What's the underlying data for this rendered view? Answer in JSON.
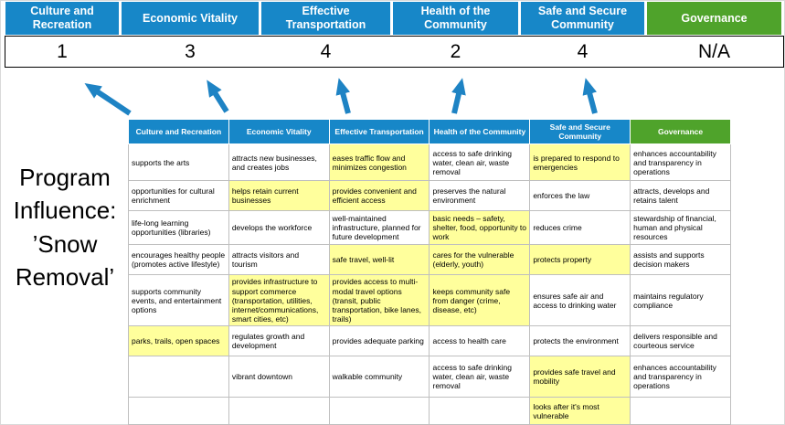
{
  "colors": {
    "blue": "#1787C8",
    "green": "#4FA32B",
    "yellow": "#FFFF9C",
    "arrow": "#1E83C4",
    "grid": "#BFBFBF"
  },
  "program_label": {
    "lines": [
      "Program",
      "Influence:",
      "’Snow",
      "Removal’"
    ]
  },
  "scoreboard": {
    "columns": [
      {
        "label": "Culture and Recreation",
        "score": "1",
        "theme": "blue"
      },
      {
        "label": "Economic Vitality",
        "score": "3",
        "theme": "blue"
      },
      {
        "label": "Effective Transportation",
        "score": "4",
        "theme": "blue"
      },
      {
        "label": "Health of the Community",
        "score": "2",
        "theme": "blue"
      },
      {
        "label": "Safe and Secure Community",
        "score": "4",
        "theme": "blue"
      },
      {
        "label": "Governance",
        "score": "N/A",
        "theme": "green"
      }
    ]
  },
  "matrix": {
    "headers": [
      {
        "label": "Culture and Recreation",
        "theme": "blue"
      },
      {
        "label": "Economic Vitality",
        "theme": "blue"
      },
      {
        "label": "Effective Transportation",
        "theme": "blue"
      },
      {
        "label": "Health of the Community",
        "theme": "blue"
      },
      {
        "label": "Safe and Secure Community",
        "theme": "blue"
      },
      {
        "label": "Governance",
        "theme": "green"
      }
    ],
    "rows": [
      [
        {
          "t": "supports the arts",
          "h": false
        },
        {
          "t": "attracts new businesses, and creates jobs",
          "h": false
        },
        {
          "t": "eases traffic flow and minimizes congestion",
          "h": true
        },
        {
          "t": "access to safe drinking water, clean air, waste removal",
          "h": false
        },
        {
          "t": "is prepared to respond to emergencies",
          "h": true
        },
        {
          "t": "enhances accountability and transparency in operations",
          "h": false
        }
      ],
      [
        {
          "t": "opportunities for cultural enrichment",
          "h": false
        },
        {
          "t": "helps retain current businesses",
          "h": true
        },
        {
          "t": "provides convenient and efficient access",
          "h": true
        },
        {
          "t": "preserves the natural environment",
          "h": false
        },
        {
          "t": "enforces the law",
          "h": false
        },
        {
          "t": "attracts, develops and retains talent",
          "h": false
        }
      ],
      [
        {
          "t": "life-long learning opportunities (libraries)",
          "h": false
        },
        {
          "t": "develops the workforce",
          "h": false
        },
        {
          "t": "well-maintained infrastructure, planned for future development",
          "h": false
        },
        {
          "t": "basic needs – safety, shelter, food, opportunity to work",
          "h": true
        },
        {
          "t": "reduces crime",
          "h": false
        },
        {
          "t": "stewardship of financial, human and physical resources",
          "h": false
        }
      ],
      [
        {
          "t": "encourages healthy people (promotes active lifestyle)",
          "h": false
        },
        {
          "t": "attracts visitors and tourism",
          "h": false
        },
        {
          "t": "safe travel, well-lit",
          "h": true
        },
        {
          "t": "cares for the vulnerable (elderly, youth)",
          "h": true
        },
        {
          "t": "protects property",
          "h": true
        },
        {
          "t": "assists and supports decision makers",
          "h": false
        }
      ],
      [
        {
          "t": "supports community events, and entertainment options",
          "h": false
        },
        {
          "t": "provides infrastructure to support commerce (transportation, utilities, internet/communications, smart cities, etc)",
          "h": true
        },
        {
          "t": "provides access to multi-modal travel options (transit, public transportation, bike lanes, trails)",
          "h": true
        },
        {
          "t": "keeps community safe from danger (crime, disease, etc)",
          "h": true
        },
        {
          "t": "ensures safe air and access to drinking water",
          "h": false
        },
        {
          "t": "maintains regulatory compliance",
          "h": false
        }
      ],
      [
        {
          "t": "parks, trails, open spaces",
          "h": true
        },
        {
          "t": "regulates growth and development",
          "h": false
        },
        {
          "t": "provides adequate parking",
          "h": false
        },
        {
          "t": "access to health care",
          "h": false
        },
        {
          "t": "protects the environment",
          "h": false
        },
        {
          "t": "delivers responsible and courteous service",
          "h": false
        }
      ],
      [
        {
          "t": "",
          "h": false
        },
        {
          "t": "vibrant downtown",
          "h": false
        },
        {
          "t": "walkable community",
          "h": false
        },
        {
          "t": "access to safe drinking water, clean air, waste removal",
          "h": false
        },
        {
          "t": "provides safe travel and mobility",
          "h": true
        },
        {
          "t": "enhances accountability and transparency in operations",
          "h": false
        }
      ],
      [
        {
          "t": "",
          "h": false
        },
        {
          "t": "",
          "h": false
        },
        {
          "t": "",
          "h": false
        },
        {
          "t": "",
          "h": false
        },
        {
          "t": "looks after it's most vulnerable",
          "h": true
        },
        {
          "t": "",
          "h": false
        }
      ]
    ]
  }
}
